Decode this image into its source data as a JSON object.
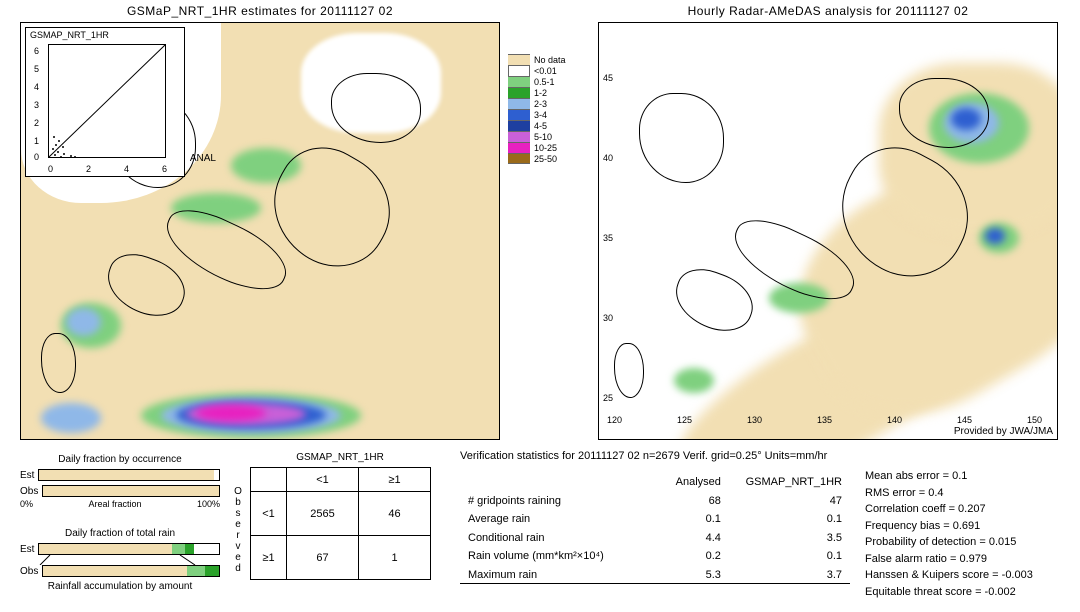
{
  "left_map": {
    "title": "GSMaP_NRT_1HR estimates for 20111127 02",
    "inset_label": "GSMAP_NRT_1HR",
    "inset_anal": "ANAL",
    "inset_xticks": [
      "0",
      "2",
      "4",
      "6"
    ],
    "inset_yticks": [
      "0",
      "1",
      "2",
      "3",
      "4",
      "5",
      "6"
    ],
    "bg_land": "#f2dfb3",
    "sea": "#ffffff"
  },
  "right_map": {
    "title": "Hourly Radar-AMeDAS analysis for 20111127 02",
    "credit": "Provided by JWA/JMA",
    "lon_ticks": [
      "120",
      "125",
      "130",
      "135",
      "140",
      "145",
      "150"
    ],
    "lat_ticks": [
      "25",
      "30",
      "35",
      "40",
      "45"
    ]
  },
  "legend": {
    "entries": [
      {
        "label": "No data",
        "color": "#f2dfb3"
      },
      {
        "label": "<0.01",
        "color": "#ffffff"
      },
      {
        "label": "0.5-1",
        "color": "#7fd07f"
      },
      {
        "label": "1-2",
        "color": "#2aa22a"
      },
      {
        "label": "2-3",
        "color": "#8fb8e8"
      },
      {
        "label": "3-4",
        "color": "#2e5fd0"
      },
      {
        "label": "4-5",
        "color": "#1e3fa0"
      },
      {
        "label": "5-10",
        "color": "#c960d8"
      },
      {
        "label": "10-25",
        "color": "#e820c0"
      },
      {
        "label": "25-50",
        "color": "#9a6a1a"
      }
    ]
  },
  "precip_colors": {
    "nodata": "#f2dfb3",
    "lt001": "#ffffff",
    "p05_1": "#7fd07f",
    "p1_2": "#2aa22a",
    "p2_3": "#8fb8e8",
    "p3_4": "#2e5fd0",
    "p4_5": "#1e3fa0",
    "p5_10": "#c960d8",
    "p10_25": "#e820c0",
    "p25_50": "#9a6a1a"
  },
  "bars": {
    "occurrence_title": "Daily fraction by occurrence",
    "occurrence": {
      "est_label": "Est",
      "obs_label": "Obs",
      "est_frac": 0.97,
      "obs_frac": 1.0,
      "axis_left": "0%",
      "axis_mid": "Areal fraction",
      "axis_right": "100%"
    },
    "totalrain_title": "Daily fraction of total rain",
    "totalrain": {
      "est_label": "Est",
      "obs_label": "Obs",
      "est_segments": [
        {
          "w": 0.74,
          "c": "#f2dfb3"
        },
        {
          "w": 0.07,
          "c": "#7fd07f"
        },
        {
          "w": 0.05,
          "c": "#2aa22a"
        },
        {
          "w": 0.14,
          "c": "#ffffff"
        }
      ],
      "obs_segments": [
        {
          "w": 0.82,
          "c": "#f2dfb3"
        },
        {
          "w": 0.1,
          "c": "#7fd07f"
        },
        {
          "w": 0.08,
          "c": "#2aa22a"
        }
      ],
      "caption": "Rainfall accumulation by amount"
    }
  },
  "ct": {
    "title": "GSMAP_NRT_1HR",
    "col_lt": "<1",
    "col_ge": "≥1",
    "row_lt": "<1",
    "row_ge": "≥1",
    "vert_label": "Observed",
    "cells": {
      "a": "2565",
      "b": "46",
      "c": "67",
      "d": "1"
    }
  },
  "verif_header": "Verification statistics for 20111127 02  n=2679  Verif. grid=0.25°  Units=mm/hr",
  "table_mid": {
    "col1": "Analysed",
    "col2": "GSMAP_NRT_1HR",
    "rows": [
      {
        "name": "# gridpoints raining",
        "a": "68",
        "b": "47"
      },
      {
        "name": "Average rain",
        "a": "0.1",
        "b": "0.1"
      },
      {
        "name": "Conditional rain",
        "a": "4.4",
        "b": "3.5"
      },
      {
        "name": "Rain volume (mm*km²×10⁴)",
        "a": "0.2",
        "b": "0.1"
      },
      {
        "name": "Maximum rain",
        "a": "5.3",
        "b": "3.7"
      }
    ]
  },
  "metrics": [
    {
      "k": "Mean abs error",
      "v": "0.1"
    },
    {
      "k": "RMS error",
      "v": "0.4"
    },
    {
      "k": "Correlation coeff",
      "v": "0.207"
    },
    {
      "k": "Frequency bias",
      "v": "0.691"
    },
    {
      "k": "Probability of detection",
      "v": "0.015"
    },
    {
      "k": "False alarm ratio",
      "v": "0.979"
    },
    {
      "k": "Hanssen & Kuipers score",
      "v": "-0.003"
    },
    {
      "k": "Equitable threat score",
      "v": "-0.002"
    }
  ]
}
